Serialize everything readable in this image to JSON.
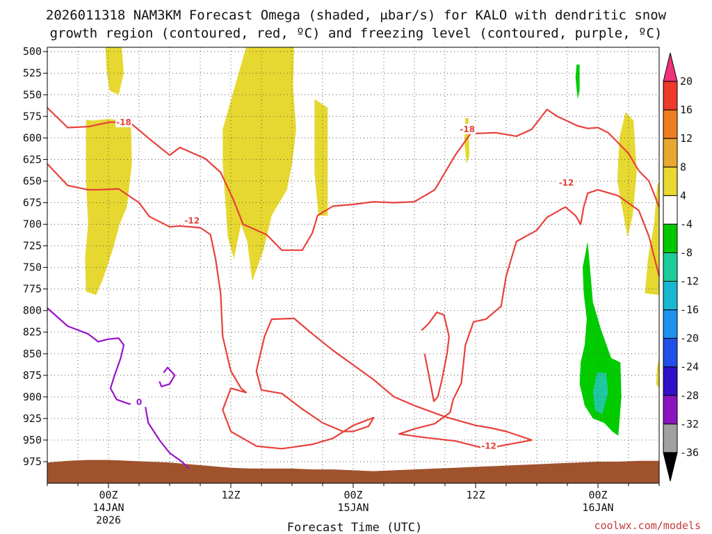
{
  "chart_data": {
    "type": "heatmap",
    "title_line1": "2026011318 NAM3KM Forecast Omega (shaded, μbar/s) for KALO with dendritic snow",
    "title_line2": "growth region (contoured, red, ºC) and freezing level (contoured, purple, ºC)",
    "xlabel": "Forecast Time (UTC)",
    "credit": "coolwx.com/models",
    "y_levels": [
      500,
      525,
      550,
      575,
      600,
      625,
      650,
      675,
      700,
      725,
      750,
      775,
      800,
      825,
      850,
      875,
      900,
      925,
      950,
      975
    ],
    "y_range": [
      495,
      1000
    ],
    "x_range_hours": [
      -6,
      54
    ],
    "x_ticks": [
      {
        "hour": 0,
        "line1": "00Z",
        "line2": "14JAN",
        "line3": "2026"
      },
      {
        "hour": 12,
        "line1": "12Z",
        "line2": "",
        "line3": ""
      },
      {
        "hour": 24,
        "line1": "00Z",
        "line2": "15JAN",
        "line3": ""
      },
      {
        "hour": 36,
        "line1": "12Z",
        "line2": "",
        "line3": ""
      },
      {
        "hour": 48,
        "line1": "00Z",
        "line2": "16JAN",
        "line3": ""
      }
    ],
    "colorbar": {
      "levels": [
        20,
        16,
        12,
        8,
        4,
        -4,
        -8,
        -12,
        -16,
        -20,
        -24,
        -28,
        -32,
        -36
      ],
      "colors": [
        "#f0327a",
        "#ee3a28",
        "#ee7d22",
        "#e8a830",
        "#e8d830",
        "#ffffff",
        "#00c800",
        "#1ecc9a",
        "#19b8d2",
        "#1e90ee",
        "#2050e8",
        "#3010c8",
        "#8c14c0",
        "#a0a0a0",
        "#000000"
      ]
    },
    "contour_labels": {
      "dgz_upper": "-18",
      "dgz_lower": "-12",
      "freezing": "0"
    },
    "omega_regions": [
      {
        "name": "uplift-yellow",
        "value": 4,
        "pts": [
          [
            -2.2,
            579
          ],
          [
            -1.5,
            580
          ],
          [
            0,
            578
          ],
          [
            1.5,
            580
          ],
          [
            2.2,
            585
          ],
          [
            2.3,
            630
          ],
          [
            1.8,
            680
          ],
          [
            1.1,
            700
          ],
          [
            0.4,
            730
          ],
          [
            -0.5,
            762
          ],
          [
            -1.2,
            782
          ],
          [
            -2.2,
            778
          ],
          [
            -2.3,
            740
          ],
          [
            -2.0,
            700
          ],
          [
            -2.2,
            650
          ]
        ]
      },
      {
        "name": "uplift-yellow",
        "value": 4,
        "pts": [
          [
            -0.3,
            495
          ],
          [
            1.3,
            495
          ],
          [
            1.5,
            525
          ],
          [
            1.0,
            550
          ],
          [
            0.1,
            545
          ],
          [
            -0.2,
            520
          ]
        ]
      },
      {
        "name": "uplift-yellow",
        "value": 4,
        "pts": [
          [
            11.8,
            565
          ],
          [
            13.5,
            495
          ],
          [
            18.2,
            495
          ],
          [
            18.1,
            540
          ],
          [
            18.4,
            590
          ],
          [
            18.0,
            630
          ],
          [
            17.5,
            660
          ],
          [
            16.0,
            690
          ],
          [
            15.2,
            730
          ],
          [
            14.1,
            766
          ],
          [
            13.6,
            720
          ],
          [
            13.0,
            700
          ],
          [
            12.3,
            740
          ],
          [
            11.7,
            715
          ],
          [
            11.2,
            630
          ],
          [
            11.2,
            590
          ]
        ]
      },
      {
        "name": "uplift-yellow",
        "value": 4,
        "pts": [
          [
            20.2,
            555
          ],
          [
            21.5,
            565
          ],
          [
            21.5,
            690
          ],
          [
            20.6,
            690
          ],
          [
            20.2,
            640
          ]
        ]
      },
      {
        "name": "uplift-yellow",
        "value": 4,
        "pts": [
          [
            35.0,
            577
          ],
          [
            35.3,
            577
          ],
          [
            35.4,
            620
          ],
          [
            35.1,
            630
          ],
          [
            34.9,
            605
          ]
        ]
      },
      {
        "name": "uplift-yellow",
        "value": 4,
        "pts": [
          [
            50.7,
            570
          ],
          [
            51.5,
            580
          ],
          [
            51.8,
            640
          ],
          [
            51.4,
            690
          ],
          [
            50.9,
            715
          ],
          [
            49.9,
            650
          ],
          [
            50.1,
            600
          ]
        ]
      },
      {
        "name": "uplift-yellow",
        "value": 4,
        "pts": [
          [
            53.8,
            655
          ],
          [
            54,
            650
          ],
          [
            54,
            782
          ],
          [
            52.6,
            780
          ],
          [
            52.9,
            740
          ],
          [
            53.5,
            700
          ]
        ]
      },
      {
        "name": "uplift-yellow",
        "value": 4,
        "pts": [
          [
            53.8,
            865
          ],
          [
            54,
            855
          ],
          [
            54,
            890
          ],
          [
            53.7,
            885
          ]
        ]
      },
      {
        "name": "sink-green",
        "value": -4,
        "pts": [
          [
            45.9,
            515
          ],
          [
            46.2,
            515
          ],
          [
            46.2,
            545
          ],
          [
            46.0,
            555
          ],
          [
            45.8,
            530
          ]
        ]
      },
      {
        "name": "sink-green",
        "value": -4,
        "pts": [
          [
            46.5,
            750
          ],
          [
            47.0,
            720
          ],
          [
            47.5,
            790
          ],
          [
            48.3,
            822
          ],
          [
            49.3,
            855
          ],
          [
            50.2,
            860
          ],
          [
            50.3,
            900
          ],
          [
            50.0,
            945
          ],
          [
            49.4,
            940
          ],
          [
            48.6,
            930
          ],
          [
            47.5,
            925
          ],
          [
            46.7,
            910
          ],
          [
            46.2,
            885
          ],
          [
            46.3,
            860
          ],
          [
            46.7,
            840
          ],
          [
            46.9,
            810
          ],
          [
            46.6,
            780
          ]
        ]
      },
      {
        "name": "sink-teal",
        "value": -8,
        "pts": [
          [
            47.9,
            872
          ],
          [
            48.8,
            872
          ],
          [
            49.0,
            895
          ],
          [
            48.4,
            920
          ],
          [
            47.7,
            915
          ],
          [
            47.5,
            895
          ]
        ]
      }
    ],
    "dgz_contours": [
      {
        "name": "dgz-minus18-line",
        "label": "-18",
        "label_at": [
          1.5,
          582
        ],
        "pts": [
          [
            -6,
            565
          ],
          [
            -4,
            588
          ],
          [
            -2,
            587
          ],
          [
            0,
            582
          ],
          [
            2,
            581
          ],
          [
            4,
            601
          ],
          [
            6,
            620
          ],
          [
            7,
            611
          ],
          [
            9.5,
            624
          ],
          [
            11,
            640
          ],
          [
            12.2,
            670
          ],
          [
            13.2,
            700
          ],
          [
            15.5,
            712
          ],
          [
            17,
            730
          ],
          [
            19,
            730
          ],
          [
            20,
            710
          ],
          [
            20.5,
            690
          ],
          [
            22,
            679
          ],
          [
            24,
            677
          ],
          [
            26,
            674
          ],
          [
            28,
            675
          ],
          [
            30,
            674
          ],
          [
            31,
            667
          ],
          [
            32,
            660
          ],
          [
            33,
            640
          ],
          [
            34,
            620
          ],
          [
            35.5,
            595
          ],
          [
            38,
            594
          ],
          [
            40,
            598
          ],
          [
            41.5,
            590
          ],
          [
            43,
            567
          ],
          [
            44,
            575
          ],
          [
            46,
            586
          ],
          [
            47,
            589
          ],
          [
            48,
            588
          ],
          [
            49,
            594
          ],
          [
            51,
            618
          ],
          [
            52,
            638
          ],
          [
            53,
            650
          ],
          [
            54,
            680
          ]
        ]
      },
      {
        "name": "dgz-minus12-line",
        "label": "-12",
        "label_at": [
          8.2,
          695
        ],
        "pts": [
          [
            -6,
            630
          ],
          [
            -4,
            655
          ],
          [
            -2,
            660
          ],
          [
            -1,
            660
          ],
          [
            1,
            659
          ],
          [
            3,
            675
          ],
          [
            4,
            691
          ],
          [
            6,
            703
          ],
          [
            7,
            702
          ],
          [
            9,
            704
          ],
          [
            10,
            712
          ],
          [
            10.5,
            740
          ],
          [
            11,
            780
          ],
          [
            11.2,
            830
          ],
          [
            12,
            870
          ],
          [
            13,
            890
          ],
          [
            13.5,
            895
          ],
          [
            12,
            890
          ],
          [
            11.2,
            915
          ],
          [
            12,
            940
          ],
          [
            14.5,
            957
          ],
          [
            17,
            960
          ],
          [
            20,
            955
          ],
          [
            22,
            948
          ],
          [
            24,
            933
          ],
          [
            26,
            924
          ],
          [
            25.5,
            934
          ],
          [
            24,
            940
          ],
          [
            23,
            940
          ],
          [
            21,
            930
          ],
          [
            19,
            914
          ],
          [
            17,
            896
          ],
          [
            15,
            892
          ],
          [
            14.5,
            870
          ],
          [
            15.3,
            830
          ],
          [
            16,
            810
          ],
          [
            18.2,
            809
          ],
          [
            20,
            827
          ],
          [
            22,
            846
          ],
          [
            24,
            863
          ],
          [
            26,
            880
          ],
          [
            28,
            900
          ],
          [
            30,
            910
          ],
          [
            33,
            923
          ],
          [
            36,
            933
          ],
          [
            37.5,
            936
          ],
          [
            39,
            940
          ],
          [
            41.5,
            950
          ],
          [
            37,
            960
          ],
          [
            34,
            951
          ],
          [
            31,
            947
          ],
          [
            28.5,
            943
          ],
          [
            30,
            937
          ],
          [
            32,
            931
          ],
          [
            33.5,
            918
          ],
          [
            33.8,
            903
          ],
          [
            34.6,
            884
          ],
          [
            35,
            840
          ],
          [
            35.8,
            813
          ],
          [
            37,
            810
          ],
          [
            38.5,
            795
          ],
          [
            39,
            760
          ],
          [
            40,
            720
          ],
          [
            42,
            707
          ],
          [
            43,
            692
          ],
          [
            44.8,
            680
          ],
          [
            45.8,
            690
          ],
          [
            46.3,
            700
          ],
          [
            46.6,
            680
          ],
          [
            47,
            664
          ],
          [
            48,
            660
          ],
          [
            50,
            667
          ],
          [
            52,
            684
          ],
          [
            53,
            714
          ],
          [
            54,
            760
          ]
        ]
      },
      {
        "name": "dgz-minus12-loop",
        "label": "",
        "label_at": null,
        "pts": [
          [
            30.7,
            823
          ],
          [
            31.4,
            815
          ],
          [
            32.2,
            802
          ],
          [
            32.9,
            805
          ],
          [
            33.4,
            830
          ],
          [
            33.2,
            850
          ],
          [
            32.7,
            880
          ],
          [
            32.3,
            900
          ],
          [
            31.9,
            905
          ],
          [
            31.5,
            880
          ],
          [
            31.0,
            850
          ]
        ]
      }
    ],
    "freezing_contours": [
      {
        "name": "freezing-level-line",
        "label": "0",
        "label_at": [
          3,
          907
        ],
        "pts": [
          [
            -6,
            797
          ],
          [
            -4,
            818
          ],
          [
            -2,
            827
          ],
          [
            -1,
            836
          ],
          [
            0,
            833
          ],
          [
            1,
            832
          ],
          [
            1.5,
            840
          ],
          [
            1.2,
            855
          ],
          [
            0.6,
            875
          ],
          [
            0.2,
            890
          ],
          [
            0.8,
            903
          ],
          [
            2,
            908
          ],
          [
            3,
            908
          ],
          [
            3.6,
            910
          ],
          [
            3.9,
            930
          ],
          [
            5,
            950
          ],
          [
            6,
            965
          ],
          [
            7.2,
            975
          ],
          [
            7.9,
            983
          ]
        ]
      },
      {
        "name": "freezing-level-loop",
        "label": "",
        "label_at": null,
        "pts": [
          [
            5.4,
            872
          ],
          [
            5.8,
            866
          ],
          [
            6.5,
            875
          ],
          [
            6,
            885
          ],
          [
            5.2,
            888
          ],
          [
            5,
            882
          ]
        ]
      }
    ]
  }
}
